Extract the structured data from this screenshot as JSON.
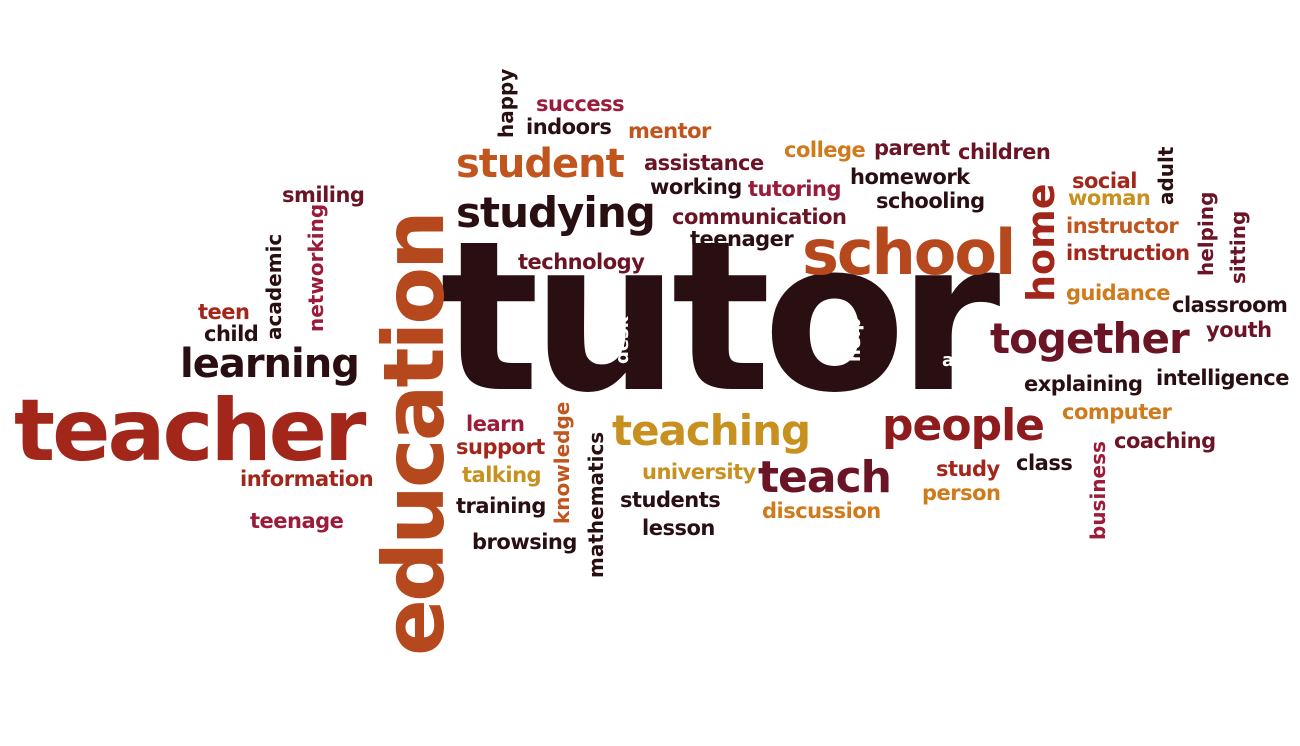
{
  "colors": {
    "dark": "#2a0f12",
    "maroon": "#6b1426",
    "red": "#8e1b1e",
    "brick": "#a3261b",
    "orange": "#b5481c",
    "burnt": "#c0561e",
    "gold": "#c8901e",
    "amber": "#cf7a1d",
    "crimson": "#9a1b3a",
    "background": "#ffffff"
  },
  "words": {
    "tutor": "tutor",
    "education": "education",
    "teacher": "teacher",
    "school": "school",
    "studying": "studying",
    "student": "student",
    "learning": "learning",
    "teaching": "teaching",
    "people": "people",
    "teach": "teach",
    "together": "together",
    "home": "home",
    "happy": "happy",
    "success": "success",
    "indoors": "indoors",
    "mentor": "mentor",
    "assistance": "assistance",
    "working": "working",
    "tutoring": "tutoring",
    "college": "college",
    "parent": "parent",
    "children": "children",
    "homework": "homework",
    "schooling": "schooling",
    "communication": "communication",
    "teenager": "teenager",
    "technology": "technology",
    "smiling": "smiling",
    "networking": "networking",
    "academic": "academic",
    "teen": "teen",
    "child": "child",
    "social": "social",
    "woman": "woman",
    "adult": "adult",
    "instructor": "instructor",
    "instruction": "instruction",
    "helping": "helping",
    "sitting": "sitting",
    "guidance": "guidance",
    "classroom": "classroom",
    "youth": "youth",
    "desk": "desk",
    "help": "help",
    "a": "a",
    "explaining": "explaining",
    "intelligence": "intelligence",
    "computer": "computer",
    "coaching": "coaching",
    "learn": "learn",
    "support": "support",
    "knowledge": "knowledge",
    "mathematics": "mathematics",
    "talking": "talking",
    "university": "university",
    "training": "training",
    "students": "students",
    "discussion": "discussion",
    "lesson": "lesson",
    "browsing": "browsing",
    "information": "information",
    "teenage": "teenage",
    "study": "study",
    "person": "person",
    "class": "class",
    "business": "business"
  }
}
